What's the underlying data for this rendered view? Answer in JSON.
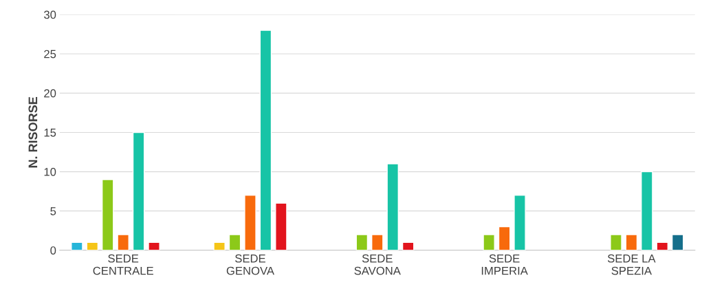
{
  "chart_data": {
    "type": "bar",
    "ylabel": "N. RISORSE",
    "categories": [
      "SEDE\nCENTRALE",
      "SEDE\nGENOVA",
      "SEDE\nSAVONA",
      "SEDE\nIMPERIA",
      "SEDE LA\nSPEZIA"
    ],
    "series": [
      {
        "color": "#26b5d9",
        "values": [
          1,
          null,
          null,
          null,
          null
        ]
      },
      {
        "color": "#f5c518",
        "values": [
          1,
          1,
          null,
          null,
          null
        ]
      },
      {
        "color": "#8cc919",
        "values": [
          9,
          2,
          2,
          2,
          2
        ]
      },
      {
        "color": "#f86a0c",
        "values": [
          2,
          7,
          2,
          3,
          2
        ]
      },
      {
        "color": "#17c4a6",
        "values": [
          15,
          28,
          11,
          7,
          10
        ]
      },
      {
        "color": "#e2141d",
        "values": [
          1,
          6,
          1,
          null,
          1
        ]
      },
      {
        "color": "#156f8b",
        "values": [
          null,
          null,
          null,
          null,
          2
        ]
      }
    ],
    "ylim": [
      0,
      30
    ],
    "yticks": [
      0,
      5,
      10,
      15,
      20,
      25,
      30
    ],
    "grid": "y"
  }
}
